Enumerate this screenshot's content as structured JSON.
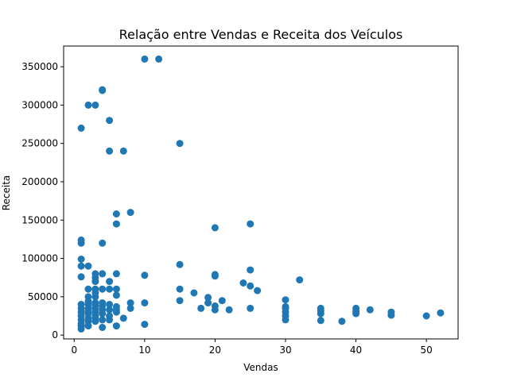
{
  "chart_data": {
    "type": "scatter",
    "title": "Relação entre Vendas e Receita dos Veículos",
    "xlabel": "Vendas",
    "ylabel": "Receita",
    "xlim": [
      -1.5,
      54.5
    ],
    "ylim": [
      -5000,
      377000
    ],
    "xticks": [
      0,
      10,
      20,
      30,
      40,
      50
    ],
    "yticks": [
      0,
      50000,
      100000,
      150000,
      200000,
      250000,
      300000,
      350000
    ],
    "grid": false,
    "marker_color": "#1f77b4",
    "points": [
      [
        1,
        8000
      ],
      [
        1,
        12000
      ],
      [
        1,
        15000
      ],
      [
        1,
        20000
      ],
      [
        1,
        25000
      ],
      [
        1,
        30000
      ],
      [
        1,
        35000
      ],
      [
        1,
        40000
      ],
      [
        1,
        76000
      ],
      [
        1,
        90000
      ],
      [
        1,
        99000
      ],
      [
        1,
        120000
      ],
      [
        1,
        124000
      ],
      [
        1,
        270000
      ],
      [
        2,
        12000
      ],
      [
        2,
        18000
      ],
      [
        2,
        22000
      ],
      [
        2,
        28000
      ],
      [
        2,
        32000
      ],
      [
        2,
        35000
      ],
      [
        2,
        40000
      ],
      [
        2,
        44000
      ],
      [
        2,
        50000
      ],
      [
        2,
        60000
      ],
      [
        2,
        90000
      ],
      [
        2,
        300000
      ],
      [
        3,
        18000
      ],
      [
        3,
        22000
      ],
      [
        3,
        25000
      ],
      [
        3,
        30000
      ],
      [
        3,
        35000
      ],
      [
        3,
        38000
      ],
      [
        3,
        42000
      ],
      [
        3,
        50000
      ],
      [
        3,
        55000
      ],
      [
        3,
        60000
      ],
      [
        3,
        70000
      ],
      [
        3,
        75000
      ],
      [
        3,
        80000
      ],
      [
        3,
        300000
      ],
      [
        4,
        10000
      ],
      [
        4,
        20000
      ],
      [
        4,
        28000
      ],
      [
        4,
        33000
      ],
      [
        4,
        38000
      ],
      [
        4,
        42000
      ],
      [
        4,
        60000
      ],
      [
        4,
        80000
      ],
      [
        4,
        120000
      ],
      [
        4,
        319000
      ],
      [
        4,
        320000
      ],
      [
        5,
        20000
      ],
      [
        5,
        25000
      ],
      [
        5,
        33000
      ],
      [
        5,
        40000
      ],
      [
        5,
        60000
      ],
      [
        5,
        70000
      ],
      [
        5,
        240000
      ],
      [
        5,
        280000
      ],
      [
        6,
        12000
      ],
      [
        6,
        30000
      ],
      [
        6,
        33000
      ],
      [
        6,
        37000
      ],
      [
        6,
        52000
      ],
      [
        6,
        60000
      ],
      [
        6,
        80000
      ],
      [
        6,
        145000
      ],
      [
        6,
        158000
      ],
      [
        7,
        22000
      ],
      [
        7,
        240000
      ],
      [
        8,
        35000
      ],
      [
        8,
        42000
      ],
      [
        8,
        160000
      ],
      [
        10,
        14000
      ],
      [
        10,
        42000
      ],
      [
        10,
        78000
      ],
      [
        10,
        360000
      ],
      [
        12,
        360000
      ],
      [
        15,
        45000
      ],
      [
        15,
        60000
      ],
      [
        15,
        92000
      ],
      [
        15,
        250000
      ],
      [
        17,
        55000
      ],
      [
        18,
        35000
      ],
      [
        19,
        42000
      ],
      [
        19,
        49000
      ],
      [
        20,
        33000
      ],
      [
        20,
        38000
      ],
      [
        20,
        77000
      ],
      [
        20,
        79000
      ],
      [
        20,
        140000
      ],
      [
        21,
        45000
      ],
      [
        22,
        33000
      ],
      [
        24,
        68000
      ],
      [
        25,
        35000
      ],
      [
        25,
        64000
      ],
      [
        25,
        85000
      ],
      [
        25,
        145000
      ],
      [
        26,
        58000
      ],
      [
        30,
        20000
      ],
      [
        30,
        25000
      ],
      [
        30,
        30000
      ],
      [
        30,
        35000
      ],
      [
        30,
        37000
      ],
      [
        30,
        46000
      ],
      [
        32,
        72000
      ],
      [
        35,
        19000
      ],
      [
        35,
        28000
      ],
      [
        35,
        32000
      ],
      [
        35,
        35000
      ],
      [
        38,
        18000
      ],
      [
        40,
        28000
      ],
      [
        40,
        31000
      ],
      [
        40,
        35000
      ],
      [
        42,
        33000
      ],
      [
        45,
        26000
      ],
      [
        45,
        30000
      ],
      [
        50,
        25000
      ],
      [
        52,
        29000
      ]
    ]
  }
}
